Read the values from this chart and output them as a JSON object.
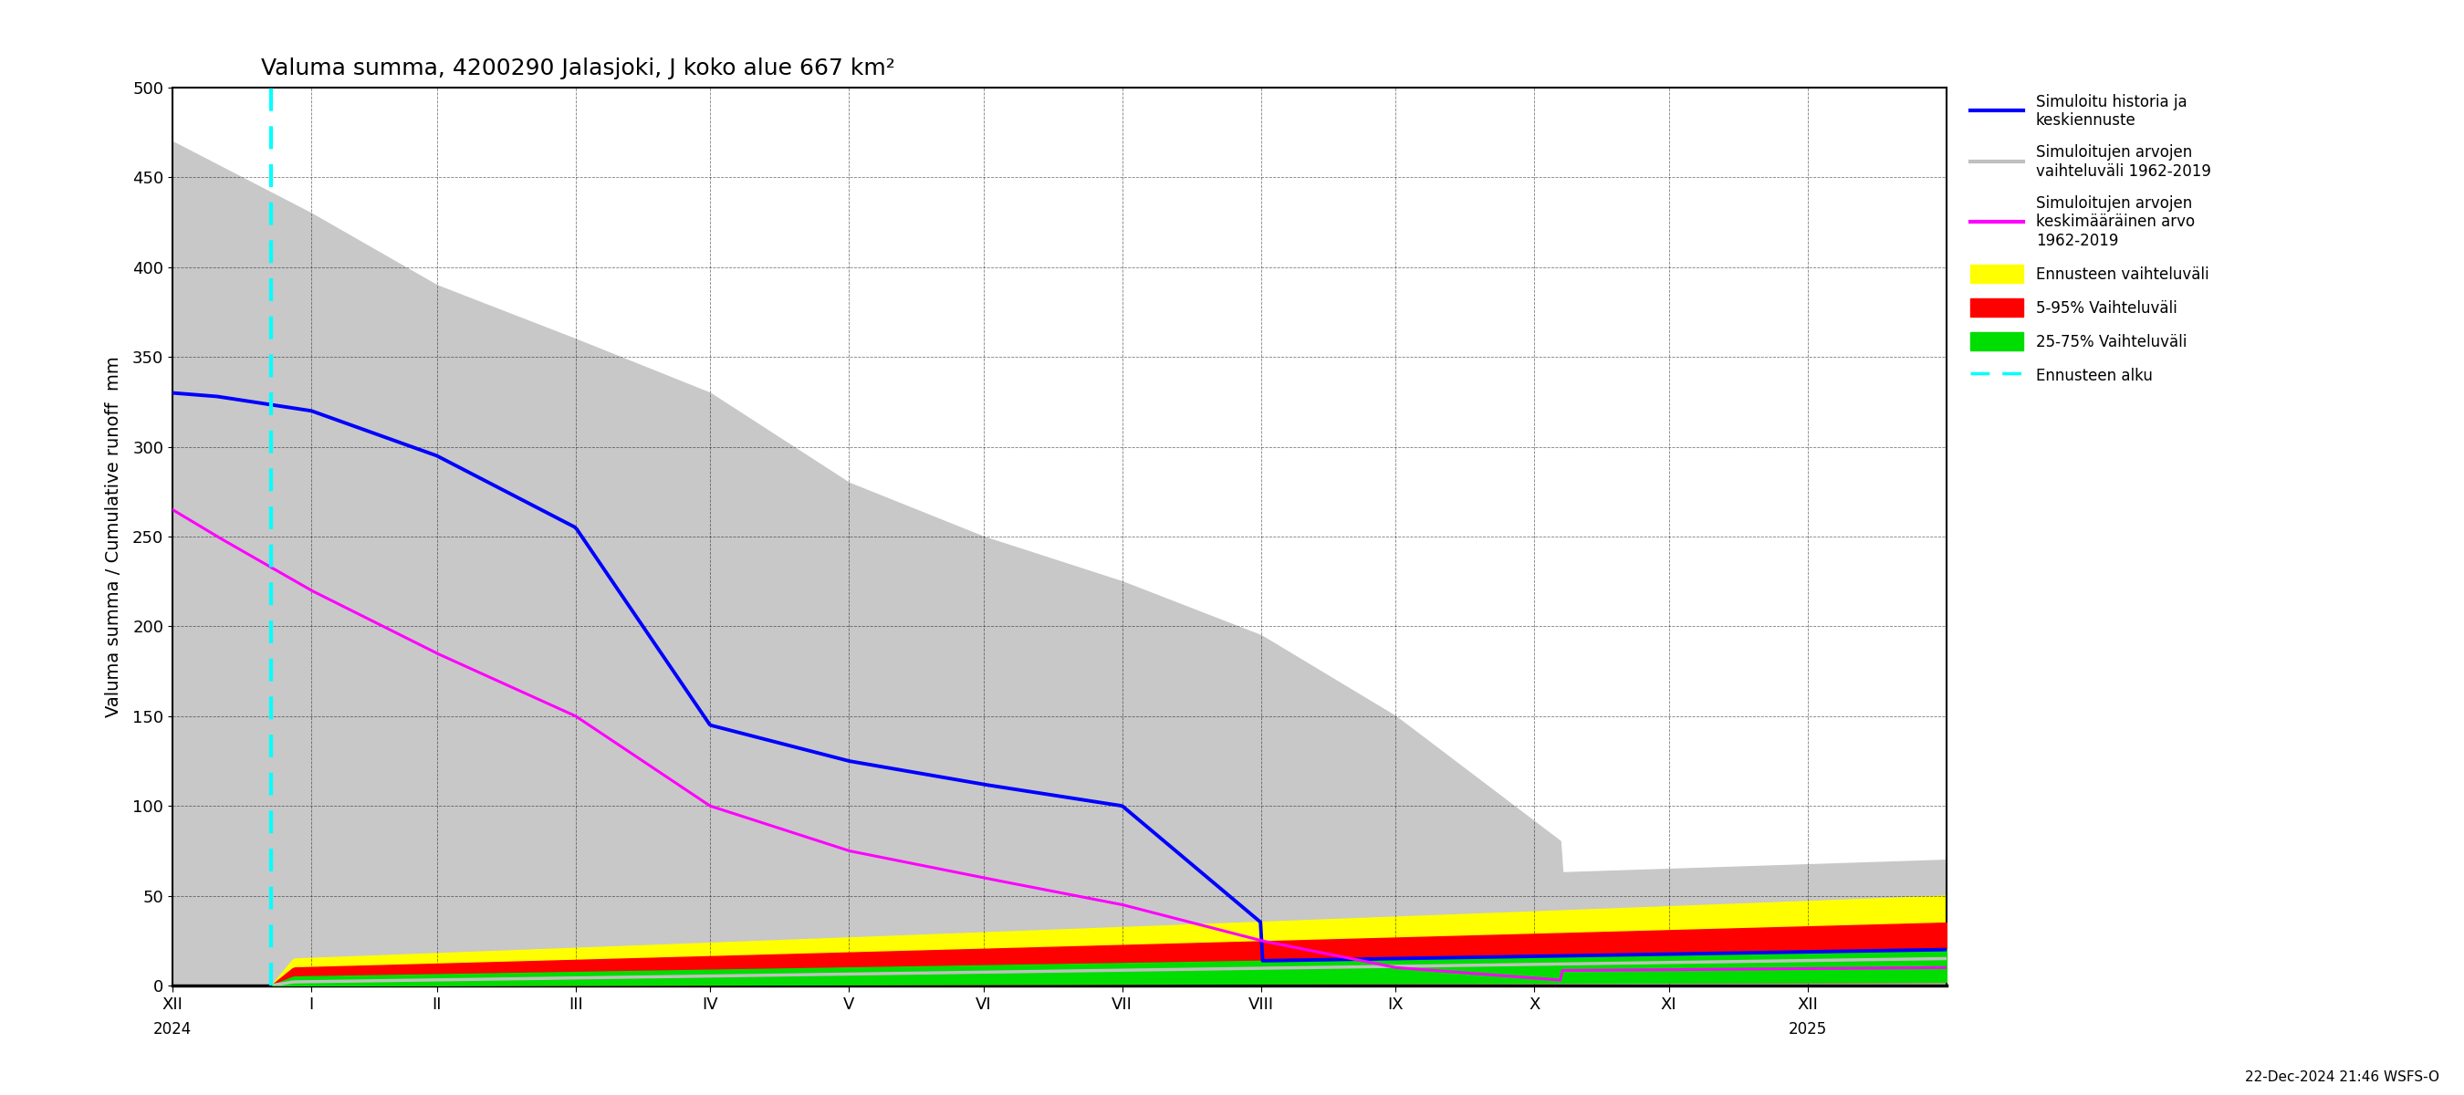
{
  "title": "Valuma summa, 4200290 Jalasjoki, J koko alue 667 km²",
  "ylabel": "Valuma summa / Cumulative runoff  mm",
  "timestamp_label": "22-Dec-2024 21:46 WSFS-O",
  "ylim": [
    0,
    500
  ],
  "colors": {
    "gray_band": "#c8c8c8",
    "yellow_band": "#ffff00",
    "red_band": "#ff0000",
    "green_band": "#00dd00",
    "blue_line": "#0000ff",
    "magenta_line": "#ff00ff",
    "white_line": "#c0c0c0",
    "cyan_dashed": "#00ffff",
    "background": "#ffffff",
    "grid": "#000000"
  },
  "legend_entries": [
    {
      "label": "Simuloitu historia ja\nkeskiennuste",
      "color": "#0000ff",
      "type": "line",
      "lw": 3
    },
    {
      "label": "Simuloitujen arvojen\nvaihteluväli 1962-2019",
      "color": "#c0c0c0",
      "type": "line",
      "lw": 3
    },
    {
      "label": "Simuloitujen arvojen\nkeskimääräinen arvo\n1962-2019",
      "color": "#ff00ff",
      "type": "line",
      "lw": 3
    },
    {
      "label": "Ennusteen vaihteluväli",
      "color": "#ffff00",
      "type": "patch"
    },
    {
      "label": "5-95% Vaihteluväli",
      "color": "#ff0000",
      "type": "patch"
    },
    {
      "label": "25-75% Vaihteluväli",
      "color": "#00dd00",
      "type": "patch"
    },
    {
      "label": "Ennusteen alku",
      "color": "#00ffff",
      "type": "dashed",
      "lw": 2.5
    }
  ],
  "xtick_labels": [
    "XII",
    "I",
    "II",
    "III",
    "IV",
    "V",
    "VI",
    "VII",
    "VIII",
    "IX",
    "X",
    "XI",
    "XII"
  ],
  "year_labels": [
    [
      "2024",
      0
    ],
    [
      "2025",
      365
    ]
  ],
  "ytick_values": [
    0,
    50,
    100,
    150,
    200,
    250,
    300,
    350,
    400,
    450,
    500
  ]
}
